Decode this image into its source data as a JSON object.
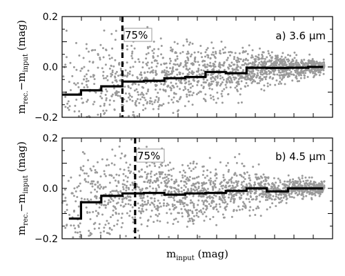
{
  "chart_data": [
    {
      "type": "scatter",
      "panel_label": "a) 3.6 μm",
      "percent_label": "75%",
      "ylabel": "m_rec. − m_input (mag)",
      "ylim": [
        -0.2,
        0.2
      ],
      "yticks": [
        -0.2,
        0.0,
        0.2
      ],
      "ytick_labels": [
        "−0.2",
        "0.0",
        "0.2"
      ],
      "xlim": [
        0,
        1
      ],
      "x_tick_labels_shown": false,
      "completeness_line_x": 0.223,
      "median_steps": [
        {
          "x0": 0.0,
          "x1": 0.07,
          "y": -0.11
        },
        {
          "x0": 0.07,
          "x1": 0.145,
          "y": -0.093
        },
        {
          "x0": 0.145,
          "x1": 0.223,
          "y": -0.077
        },
        {
          "x0": 0.223,
          "x1": 0.302,
          "y": -0.058
        },
        {
          "x0": 0.302,
          "x1": 0.378,
          "y": -0.055
        },
        {
          "x0": 0.378,
          "x1": 0.455,
          "y": -0.045
        },
        {
          "x0": 0.455,
          "x1": 0.53,
          "y": -0.04
        },
        {
          "x0": 0.53,
          "x1": 0.605,
          "y": -0.02
        },
        {
          "x0": 0.605,
          "x1": 0.682,
          "y": -0.025
        },
        {
          "x0": 0.682,
          "x1": 0.757,
          "y": -0.003
        },
        {
          "x0": 0.757,
          "x1": 0.835,
          "y": -0.004
        },
        {
          "x0": 0.835,
          "x1": 0.91,
          "y": -0.003
        },
        {
          "x0": 0.91,
          "x1": 0.965,
          "y": 0.0
        }
      ],
      "scatter_color": "#9a9a9a"
    },
    {
      "type": "scatter",
      "panel_label": "b) 4.5 μm",
      "percent_label": "75%",
      "ylabel": "m_rec. − m_input (mag)",
      "xlabel": "m_input (mag)",
      "ylim": [
        -0.2,
        0.2
      ],
      "yticks": [
        -0.2,
        0.0,
        0.2
      ],
      "ytick_labels": [
        "−0.2",
        "0.0",
        "0.2"
      ],
      "xlim": [
        0,
        1
      ],
      "x_tick_labels_shown": false,
      "completeness_line_x": 0.27,
      "median_steps": [
        {
          "x0": 0.025,
          "x1": 0.07,
          "y": -0.12
        },
        {
          "x0": 0.07,
          "x1": 0.145,
          "y": -0.055
        },
        {
          "x0": 0.145,
          "x1": 0.223,
          "y": -0.03
        },
        {
          "x0": 0.223,
          "x1": 0.302,
          "y": -0.02
        },
        {
          "x0": 0.302,
          "x1": 0.378,
          "y": -0.018
        },
        {
          "x0": 0.378,
          "x1": 0.455,
          "y": -0.025
        },
        {
          "x0": 0.455,
          "x1": 0.53,
          "y": -0.02
        },
        {
          "x0": 0.53,
          "x1": 0.605,
          "y": -0.018
        },
        {
          "x0": 0.605,
          "x1": 0.682,
          "y": -0.01
        },
        {
          "x0": 0.682,
          "x1": 0.757,
          "y": 0.0
        },
        {
          "x0": 0.757,
          "x1": 0.835,
          "y": -0.012
        },
        {
          "x0": 0.835,
          "x1": 0.91,
          "y": 0.0
        },
        {
          "x0": 0.91,
          "x1": 0.965,
          "y": 0.0
        }
      ],
      "scatter_color": "#9a9a9a"
    }
  ]
}
